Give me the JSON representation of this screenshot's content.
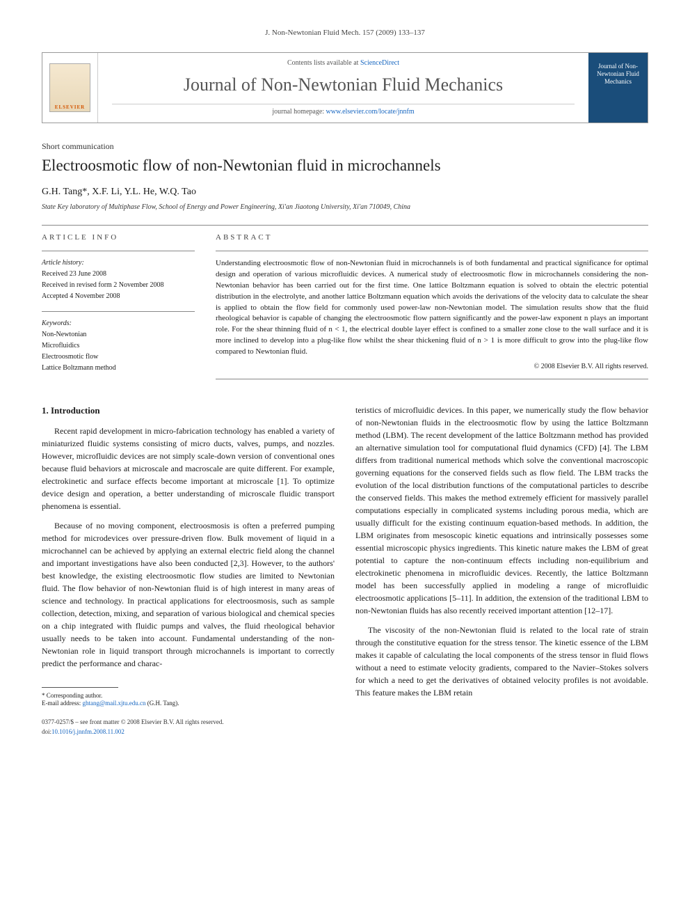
{
  "top_ref": "J. Non-Newtonian Fluid Mech. 157 (2009) 133–137",
  "header": {
    "contents_prefix": "Contents lists available at ",
    "contents_link": "ScienceDirect",
    "journal_name": "Journal of Non-Newtonian Fluid Mechanics",
    "homepage_prefix": "journal homepage: ",
    "homepage_url": "www.elsevier.com/locate/jnnfm",
    "cover_title": "Journal of Non-Newtonian Fluid Mechanics",
    "elsevier_label": "ELSEVIER"
  },
  "article": {
    "type": "Short communication",
    "title": "Electroosmotic flow of non-Newtonian fluid in microchannels",
    "authors": "G.H. Tang*, X.F. Li, Y.L. He, W.Q. Tao",
    "affiliation": "State Key laboratory of Multiphase Flow, School of Energy and Power Engineering, Xi'an Jiaotong University, Xi'an 710049, China"
  },
  "info": {
    "header_info": "ARTICLE INFO",
    "history_label": "Article history:",
    "received": "Received 23 June 2008",
    "revised": "Received in revised form 2 November 2008",
    "accepted": "Accepted 4 November 2008",
    "keywords_label": "Keywords:",
    "kw1": "Non-Newtonian",
    "kw2": "Microfluidics",
    "kw3": "Electroosmotic flow",
    "kw4": "Lattice Boltzmann method"
  },
  "abstract": {
    "header": "ABSTRACT",
    "text": "Understanding electroosmotic flow of non-Newtonian fluid in microchannels is of both fundamental and practical significance for optimal design and operation of various microfluidic devices. A numerical study of electroosmotic flow in microchannels considering the non-Newtonian behavior has been carried out for the first time. One lattice Boltzmann equation is solved to obtain the electric potential distribution in the electrolyte, and another lattice Boltzmann equation which avoids the derivations of the velocity data to calculate the shear is applied to obtain the flow field for commonly used power-law non-Newtonian model. The simulation results show that the fluid rheological behavior is capable of changing the electroosmotic flow pattern significantly and the power-law exponent n plays an important role. For the shear thinning fluid of n < 1, the electrical double layer effect is confined to a smaller zone close to the wall surface and it is more inclined to develop into a plug-like flow whilst the shear thickening fluid of n > 1 is more difficult to grow into the plug-like flow compared to Newtonian fluid.",
    "copyright": "© 2008 Elsevier B.V. All rights reserved."
  },
  "body": {
    "sec1_head": "1. Introduction",
    "p1": "Recent rapid development in micro-fabrication technology has enabled a variety of miniaturized fluidic systems consisting of micro ducts, valves, pumps, and nozzles. However, microfluidic devices are not simply scale-down version of conventional ones because fluid behaviors at microscale and macroscale are quite different. For example, electrokinetic and surface effects become important at microscale [1]. To optimize device design and operation, a better understanding of microscale fluidic transport phenomena is essential.",
    "p2": "Because of no moving component, electroosmosis is often a preferred pumping method for microdevices over pressure-driven flow. Bulk movement of liquid in a microchannel can be achieved by applying an external electric field along the channel and important investigations have also been conducted [2,3]. However, to the authors' best knowledge, the existing electroosmotic flow studies are limited to Newtonian fluid. The flow behavior of non-Newtonian fluid is of high interest in many areas of science and technology. In practical applications for electroosmosis, such as sample collection, detection, mixing, and separation of various biological and chemical species on a chip integrated with fluidic pumps and valves, the fluid rheological behavior usually needs to be taken into account. Fundamental understanding of the non-Newtonian role in liquid transport through microchannels is important to correctly predict the performance and charac-",
    "p3": "teristics of microfluidic devices. In this paper, we numerically study the flow behavior of non-Newtonian fluids in the electroosmotic flow by using the lattice Boltzmann method (LBM). The recent development of the lattice Boltzmann method has provided an alternative simulation tool for computational fluid dynamics (CFD) [4]. The LBM differs from traditional numerical methods which solve the conventional macroscopic governing equations for the conserved fields such as flow field. The LBM tracks the evolution of the local distribution functions of the computational particles to describe the conserved fields. This makes the method extremely efficient for massively parallel computations especially in complicated systems including porous media, which are usually difficult for the existing continuum equation-based methods. In addition, the LBM originates from mesoscopic kinetic equations and intrinsically possesses some essential microscopic physics ingredients. This kinetic nature makes the LBM of great potential to capture the non-continuum effects including non-equilibrium and electrokinetic phenomena in microfluidic devices. Recently, the lattice Boltzmann model has been successfully applied in modeling a range of microfluidic electroosmotic applications [5–11]. In addition, the extension of the traditional LBM to non-Newtonian fluids has also recently received important attention [12–17].",
    "p4": "The viscosity of the non-Newtonian fluid is related to the local rate of strain through the constitutive equation for the stress tensor. The kinetic essence of the LBM makes it capable of calculating the local components of the stress tensor in fluid flows without a need to estimate velocity gradients, compared to the Navier–Stokes solvers for which a need to get the derivatives of obtained velocity profiles is not avoidable. This feature makes the LBM retain"
  },
  "footnote": {
    "corr": "* Corresponding author.",
    "email_label": "E-mail address: ",
    "email": "ghtang@mail.xjtu.edu.cn",
    "email_suffix": " (G.H. Tang)."
  },
  "footer": {
    "line1": "0377-0257/$ – see front matter © 2008 Elsevier B.V. All rights reserved.",
    "doi_label": "doi:",
    "doi": "10.1016/j.jnnfm.2008.11.002"
  }
}
